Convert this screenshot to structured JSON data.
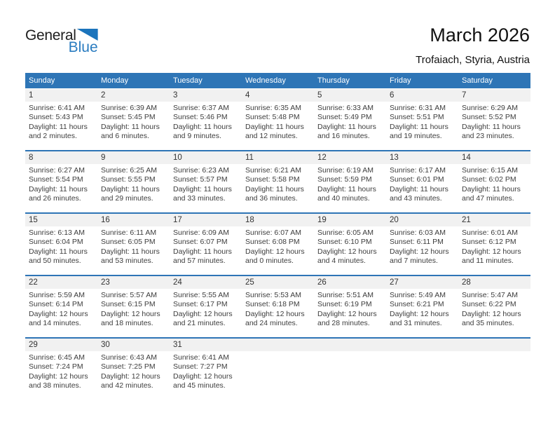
{
  "logo": {
    "word1": "General",
    "word2": "Blue",
    "triangle_color": "#1B74BC",
    "blue_text_color": "#2A7CC0"
  },
  "header": {
    "title": "March 2026",
    "subtitle": "Trofaiach, Styria, Austria"
  },
  "calendar": {
    "header_bg": "#2E75B6",
    "weekdays": [
      "Sunday",
      "Monday",
      "Tuesday",
      "Wednesday",
      "Thursday",
      "Friday",
      "Saturday"
    ],
    "weeks": [
      [
        {
          "day": "1",
          "lines": [
            "Sunrise: 6:41 AM",
            "Sunset: 5:43 PM",
            "Daylight: 11 hours",
            "and 2 minutes."
          ]
        },
        {
          "day": "2",
          "lines": [
            "Sunrise: 6:39 AM",
            "Sunset: 5:45 PM",
            "Daylight: 11 hours",
            "and 6 minutes."
          ]
        },
        {
          "day": "3",
          "lines": [
            "Sunrise: 6:37 AM",
            "Sunset: 5:46 PM",
            "Daylight: 11 hours",
            "and 9 minutes."
          ]
        },
        {
          "day": "4",
          "lines": [
            "Sunrise: 6:35 AM",
            "Sunset: 5:48 PM",
            "Daylight: 11 hours",
            "and 12 minutes."
          ]
        },
        {
          "day": "5",
          "lines": [
            "Sunrise: 6:33 AM",
            "Sunset: 5:49 PM",
            "Daylight: 11 hours",
            "and 16 minutes."
          ]
        },
        {
          "day": "6",
          "lines": [
            "Sunrise: 6:31 AM",
            "Sunset: 5:51 PM",
            "Daylight: 11 hours",
            "and 19 minutes."
          ]
        },
        {
          "day": "7",
          "lines": [
            "Sunrise: 6:29 AM",
            "Sunset: 5:52 PM",
            "Daylight: 11 hours",
            "and 23 minutes."
          ]
        }
      ],
      [
        {
          "day": "8",
          "lines": [
            "Sunrise: 6:27 AM",
            "Sunset: 5:54 PM",
            "Daylight: 11 hours",
            "and 26 minutes."
          ]
        },
        {
          "day": "9",
          "lines": [
            "Sunrise: 6:25 AM",
            "Sunset: 5:55 PM",
            "Daylight: 11 hours",
            "and 29 minutes."
          ]
        },
        {
          "day": "10",
          "lines": [
            "Sunrise: 6:23 AM",
            "Sunset: 5:57 PM",
            "Daylight: 11 hours",
            "and 33 minutes."
          ]
        },
        {
          "day": "11",
          "lines": [
            "Sunrise: 6:21 AM",
            "Sunset: 5:58 PM",
            "Daylight: 11 hours",
            "and 36 minutes."
          ]
        },
        {
          "day": "12",
          "lines": [
            "Sunrise: 6:19 AM",
            "Sunset: 5:59 PM",
            "Daylight: 11 hours",
            "and 40 minutes."
          ]
        },
        {
          "day": "13",
          "lines": [
            "Sunrise: 6:17 AM",
            "Sunset: 6:01 PM",
            "Daylight: 11 hours",
            "and 43 minutes."
          ]
        },
        {
          "day": "14",
          "lines": [
            "Sunrise: 6:15 AM",
            "Sunset: 6:02 PM",
            "Daylight: 11 hours",
            "and 47 minutes."
          ]
        }
      ],
      [
        {
          "day": "15",
          "lines": [
            "Sunrise: 6:13 AM",
            "Sunset: 6:04 PM",
            "Daylight: 11 hours",
            "and 50 minutes."
          ]
        },
        {
          "day": "16",
          "lines": [
            "Sunrise: 6:11 AM",
            "Sunset: 6:05 PM",
            "Daylight: 11 hours",
            "and 53 minutes."
          ]
        },
        {
          "day": "17",
          "lines": [
            "Sunrise: 6:09 AM",
            "Sunset: 6:07 PM",
            "Daylight: 11 hours",
            "and 57 minutes."
          ]
        },
        {
          "day": "18",
          "lines": [
            "Sunrise: 6:07 AM",
            "Sunset: 6:08 PM",
            "Daylight: 12 hours",
            "and 0 minutes."
          ]
        },
        {
          "day": "19",
          "lines": [
            "Sunrise: 6:05 AM",
            "Sunset: 6:10 PM",
            "Daylight: 12 hours",
            "and 4 minutes."
          ]
        },
        {
          "day": "20",
          "lines": [
            "Sunrise: 6:03 AM",
            "Sunset: 6:11 PM",
            "Daylight: 12 hours",
            "and 7 minutes."
          ]
        },
        {
          "day": "21",
          "lines": [
            "Sunrise: 6:01 AM",
            "Sunset: 6:12 PM",
            "Daylight: 12 hours",
            "and 11 minutes."
          ]
        }
      ],
      [
        {
          "day": "22",
          "lines": [
            "Sunrise: 5:59 AM",
            "Sunset: 6:14 PM",
            "Daylight: 12 hours",
            "and 14 minutes."
          ]
        },
        {
          "day": "23",
          "lines": [
            "Sunrise: 5:57 AM",
            "Sunset: 6:15 PM",
            "Daylight: 12 hours",
            "and 18 minutes."
          ]
        },
        {
          "day": "24",
          "lines": [
            "Sunrise: 5:55 AM",
            "Sunset: 6:17 PM",
            "Daylight: 12 hours",
            "and 21 minutes."
          ]
        },
        {
          "day": "25",
          "lines": [
            "Sunrise: 5:53 AM",
            "Sunset: 6:18 PM",
            "Daylight: 12 hours",
            "and 24 minutes."
          ]
        },
        {
          "day": "26",
          "lines": [
            "Sunrise: 5:51 AM",
            "Sunset: 6:19 PM",
            "Daylight: 12 hours",
            "and 28 minutes."
          ]
        },
        {
          "day": "27",
          "lines": [
            "Sunrise: 5:49 AM",
            "Sunset: 6:21 PM",
            "Daylight: 12 hours",
            "and 31 minutes."
          ]
        },
        {
          "day": "28",
          "lines": [
            "Sunrise: 5:47 AM",
            "Sunset: 6:22 PM",
            "Daylight: 12 hours",
            "and 35 minutes."
          ]
        }
      ],
      [
        {
          "day": "29",
          "lines": [
            "Sunrise: 6:45 AM",
            "Sunset: 7:24 PM",
            "Daylight: 12 hours",
            "and 38 minutes."
          ]
        },
        {
          "day": "30",
          "lines": [
            "Sunrise: 6:43 AM",
            "Sunset: 7:25 PM",
            "Daylight: 12 hours",
            "and 42 minutes."
          ]
        },
        {
          "day": "31",
          "lines": [
            "Sunrise: 6:41 AM",
            "Sunset: 7:27 PM",
            "Daylight: 12 hours",
            "and 45 minutes."
          ]
        },
        null,
        null,
        null,
        null
      ]
    ]
  }
}
